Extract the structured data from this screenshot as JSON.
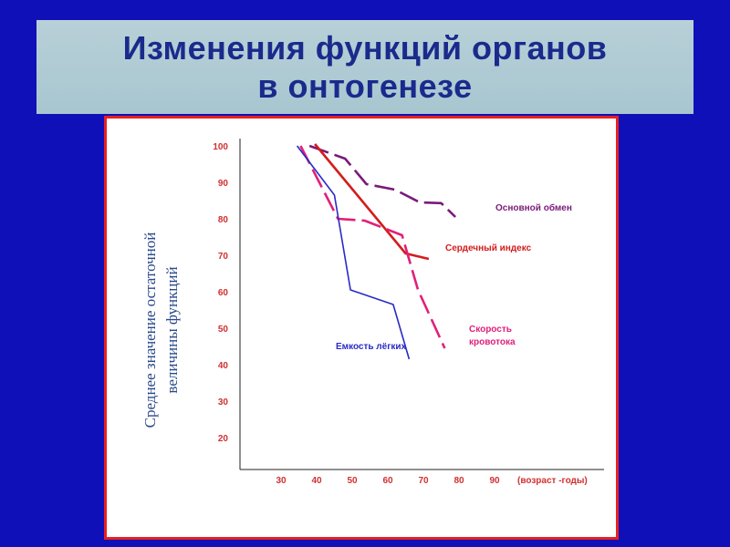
{
  "title": {
    "line1": "Изменения функций органов",
    "line2": "в онтогенезе"
  },
  "colors": {
    "background": "#1010b8",
    "title_text": "#1a2a8c",
    "title_banner": "#b0ccd4",
    "panel_border": "#e82020",
    "tick_labels": "#d03030",
    "axis": "#222222"
  },
  "chart_data": {
    "type": "line",
    "title": "",
    "ylabel_lines": [
      "Среднее значение остаточной",
      "величины функций"
    ],
    "xlabel": "(возраст -годы)",
    "xlim": [
      30,
      90
    ],
    "ylim": [
      20,
      100
    ],
    "x_ticks": [
      30,
      40,
      50,
      60,
      70,
      80,
      90
    ],
    "y_ticks": [
      20,
      30,
      40,
      50,
      60,
      70,
      80,
      90,
      100
    ],
    "grid": false,
    "series": [
      {
        "name": "Основной обмен",
        "color": "#7a1a7a",
        "dash": "long-dash",
        "x": [
          38,
          48,
          54,
          62,
          69,
          75,
          79
        ],
        "y": [
          100,
          96.5,
          89.5,
          88,
          84.5,
          84.3,
          80.5
        ]
      },
      {
        "name": "Сердечный индекс",
        "color": "#d41c1c",
        "dash": "solid",
        "x": [
          39.5,
          65,
          71.5
        ],
        "y": [
          100.5,
          70.5,
          69
        ]
      },
      {
        "name": "Скорость кровотока",
        "color": "#e0207a",
        "dash": "long-dash",
        "x": [
          35.5,
          46,
          53.5,
          64,
          68.5,
          76
        ],
        "y": [
          100,
          80,
          79.5,
          75.5,
          60.5,
          44.5
        ]
      },
      {
        "name": "Емкость лёгких",
        "color": "#2a2ac8",
        "dash": "solid",
        "x": [
          34.5,
          45,
          49.5,
          61.5,
          66
        ],
        "y": [
          100,
          86.5,
          60.5,
          56.5,
          41.5
        ]
      }
    ],
    "annotations": {
      "s0": "Основной обмен",
      "s1": "Сердечный индекс",
      "s2_line1": "Скорость",
      "s2_line2": "кровотока",
      "s3": "Емкость лёгких"
    }
  }
}
